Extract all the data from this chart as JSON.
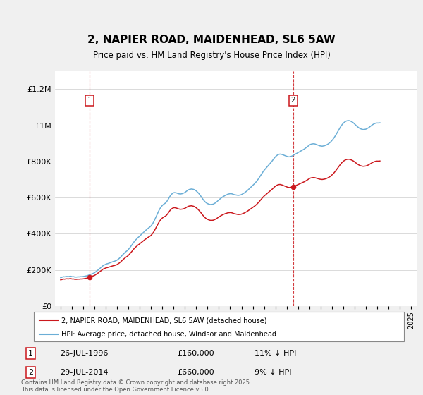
{
  "title": "2, NAPIER ROAD, MAIDENHEAD, SL6 5AW",
  "subtitle": "Price paid vs. HM Land Registry's House Price Index (HPI)",
  "hpi_color": "#6baed6",
  "price_color": "#cb181d",
  "background_color": "#f0f0f0",
  "plot_bg_color": "#ffffff",
  "ylim": [
    0,
    1300000
  ],
  "yticks": [
    0,
    200000,
    400000,
    600000,
    800000,
    1000000,
    1200000
  ],
  "xlim_start": 1993.5,
  "xlim_end": 2025.5,
  "xlabel_years": [
    1994,
    1995,
    1996,
    1997,
    1998,
    1999,
    2000,
    2001,
    2002,
    2003,
    2004,
    2005,
    2006,
    2007,
    2008,
    2009,
    2010,
    2011,
    2012,
    2013,
    2014,
    2015,
    2016,
    2017,
    2018,
    2019,
    2020,
    2021,
    2022,
    2023,
    2024,
    2025
  ],
  "hpi_start_year": 1994.0,
  "hpi_step": 0.08333333333,
  "transaction1_x": 1996.57,
  "transaction1_y": 160000,
  "transaction1_label": "1",
  "transaction2_x": 2014.57,
  "transaction2_y": 660000,
  "transaction2_label": "2",
  "legend_line1": "2, NAPIER ROAD, MAIDENHEAD, SL6 5AW (detached house)",
  "legend_line2": "HPI: Average price, detached house, Windsor and Maidenhead",
  "annotation1_date": "26-JUL-1996",
  "annotation1_price": "£160,000",
  "annotation1_hpi": "11% ↓ HPI",
  "annotation2_date": "29-JUL-2014",
  "annotation2_price": "£660,000",
  "annotation2_hpi": "9% ↓ HPI",
  "footnote": "Contains HM Land Registry data © Crown copyright and database right 2025.\nThis data is licensed under the Open Government Licence v3.0.",
  "hpi_data_y": [
    158000,
    159000,
    161000,
    163000,
    162000,
    163000,
    164000,
    164000,
    163000,
    164000,
    165000,
    165000,
    163000,
    163000,
    163000,
    161000,
    161000,
    161000,
    162000,
    162000,
    162000,
    163000,
    163000,
    163000,
    164000,
    165000,
    166000,
    167000,
    168000,
    170000,
    172000,
    174000,
    176000,
    178000,
    180000,
    182000,
    185000,
    189000,
    193000,
    197000,
    201000,
    206000,
    210000,
    215000,
    219000,
    224000,
    227000,
    229000,
    232000,
    234000,
    235000,
    237000,
    239000,
    241000,
    243000,
    245000,
    247000,
    248000,
    250000,
    252000,
    255000,
    259000,
    263000,
    268000,
    273000,
    279000,
    285000,
    290000,
    295000,
    300000,
    304000,
    308000,
    314000,
    320000,
    327000,
    334000,
    341000,
    349000,
    356000,
    362000,
    368000,
    373000,
    379000,
    383000,
    388000,
    393000,
    398000,
    403000,
    408000,
    413000,
    418000,
    422000,
    427000,
    431000,
    435000,
    439000,
    444000,
    451000,
    459000,
    468000,
    479000,
    490000,
    502000,
    514000,
    525000,
    535000,
    544000,
    551000,
    557000,
    562000,
    566000,
    569000,
    574000,
    581000,
    589000,
    598000,
    607000,
    614000,
    620000,
    624000,
    627000,
    628000,
    627000,
    626000,
    624000,
    622000,
    621000,
    620000,
    621000,
    622000,
    624000,
    626000,
    629000,
    633000,
    637000,
    641000,
    644000,
    646000,
    647000,
    648000,
    647000,
    646000,
    644000,
    641000,
    637000,
    632000,
    627000,
    621000,
    614000,
    607000,
    599000,
    592000,
    585000,
    579000,
    574000,
    570000,
    567000,
    565000,
    563000,
    562000,
    562000,
    563000,
    564000,
    567000,
    570000,
    574000,
    578000,
    583000,
    587000,
    592000,
    596000,
    600000,
    604000,
    607000,
    610000,
    613000,
    615000,
    618000,
    620000,
    621000,
    622000,
    622000,
    621000,
    619000,
    617000,
    616000,
    615000,
    614000,
    613000,
    613000,
    614000,
    615000,
    617000,
    620000,
    623000,
    626000,
    630000,
    634000,
    638000,
    643000,
    648000,
    653000,
    658000,
    663000,
    668000,
    673000,
    678000,
    684000,
    690000,
    697000,
    704000,
    712000,
    720000,
    728000,
    736000,
    744000,
    751000,
    757000,
    763000,
    769000,
    775000,
    781000,
    787000,
    793000,
    799000,
    806000,
    813000,
    820000,
    826000,
    831000,
    835000,
    838000,
    840000,
    841000,
    840000,
    839000,
    837000,
    835000,
    833000,
    831000,
    829000,
    827000,
    826000,
    826000,
    827000,
    829000,
    831000,
    834000,
    837000,
    840000,
    843000,
    846000,
    849000,
    852000,
    855000,
    858000,
    861000,
    864000,
    867000,
    870000,
    874000,
    878000,
    882000,
    886000,
    890000,
    894000,
    896000,
    897000,
    898000,
    898000,
    897000,
    895000,
    893000,
    891000,
    889000,
    887000,
    886000,
    885000,
    885000,
    886000,
    887000,
    889000,
    891000,
    894000,
    897000,
    901000,
    905000,
    910000,
    916000,
    922000,
    929000,
    937000,
    945000,
    954000,
    963000,
    972000,
    981000,
    990000,
    998000,
    1005000,
    1011000,
    1016000,
    1020000,
    1023000,
    1025000,
    1026000,
    1026000,
    1025000,
    1023000,
    1020000,
    1017000,
    1013000,
    1008000,
    1003000,
    998000,
    993000,
    989000,
    985000,
    982000,
    980000,
    978000,
    977000,
    977000,
    978000,
    979000,
    981000,
    984000,
    987000,
    991000,
    995000,
    999000,
    1003000,
    1006000,
    1009000,
    1011000,
    1013000,
    1013000,
    1013000,
    1013000,
    1014000
  ]
}
